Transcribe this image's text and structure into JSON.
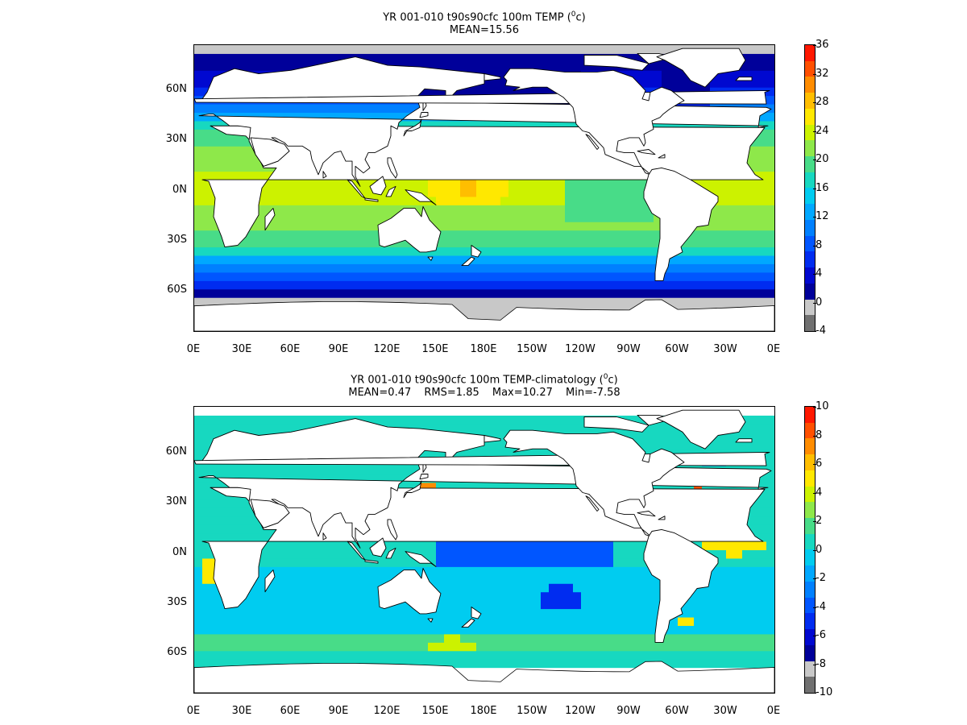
{
  "panels": [
    {
      "title_main": "YR 001-010 t90s90cfc 100m TEMP (",
      "title_sup": "0",
      "title_unit": "c)",
      "stats": [
        "MEAN=15.56"
      ],
      "colorbar_labels": [
        "36",
        "32",
        "28",
        "24",
        "20",
        "16",
        "12",
        "8",
        "4",
        "0",
        "-4"
      ],
      "colorbar_colors": [
        "#ff1800",
        "#ff5000",
        "#ff8c00",
        "#ffbe00",
        "#ffe800",
        "#ccf200",
        "#8ee84a",
        "#48dc88",
        "#17d8c0",
        "#00ccf0",
        "#00a8ff",
        "#0080ff",
        "#0056ff",
        "#002cf0",
        "#0008d0",
        "#00009a",
        "#c8c8c8",
        "#707070"
      ],
      "color_field": "temperature"
    },
    {
      "title_main": "YR 001-010 t90s90cfc 100m TEMP-climatology (",
      "title_sup": "0",
      "title_unit": "c)",
      "stats": [
        "MEAN=0.47",
        "RMS=1.85",
        "Max=10.27",
        "Min=-7.58"
      ],
      "colorbar_labels": [
        "10",
        "8",
        "6",
        "4",
        "2",
        "0",
        "-2",
        "-4",
        "-6",
        "-8",
        "-10"
      ],
      "colorbar_colors": [
        "#ff1800",
        "#ff5000",
        "#ff8c00",
        "#ffbe00",
        "#ffe800",
        "#ccf200",
        "#8ee84a",
        "#48dc88",
        "#17d8c0",
        "#00ccf0",
        "#00a8ff",
        "#0080ff",
        "#0056ff",
        "#002cf0",
        "#0008d0",
        "#00009a",
        "#c8c8c8",
        "#707070"
      ],
      "color_field": "anomaly"
    }
  ],
  "lat_labels": [
    "60N",
    "30N",
    "0N",
    "30S",
    "60S"
  ],
  "lon_labels": [
    "0E",
    "30E",
    "60E",
    "90E",
    "120E",
    "150E",
    "180E",
    "150W",
    "120W",
    "90W",
    "60W",
    "30W",
    "0E"
  ],
  "colors": {
    "land": "#ffffff",
    "coast": "#000000",
    "ice": "#c8c8c8"
  }
}
